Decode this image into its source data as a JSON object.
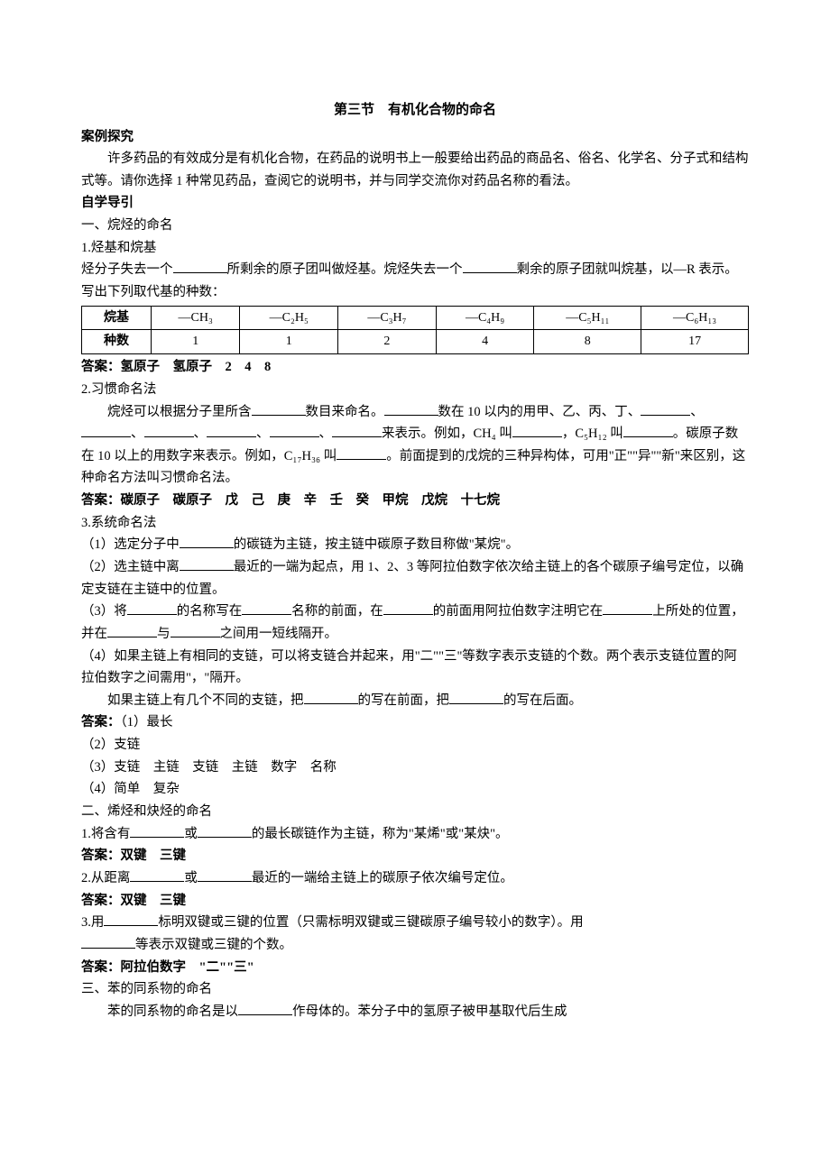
{
  "title": "第三节　有机化合物的命名",
  "sections": {
    "case_study": {
      "heading": "案例探究",
      "text": "许多药品的有效成分是有机化合物，在药品的说明书上一般要给出药品的商品名、俗名、化学名、分子式和结构式等。请你选择 1 种常见药品，查阅它的说明书，并与同学交流你对药品名称的看法。"
    },
    "self_study": {
      "heading": "自学导引"
    },
    "part1": {
      "heading": "一、烷烃的命名",
      "item1": {
        "label": "1.烃基和烷基",
        "text_a": "烃分子失去一个",
        "text_b": "所剩余的原子团叫做烃基。烷烃失去一个",
        "text_c": "剩余的原子团就叫烷基，以—R 表示。写出下列取代基的种数："
      },
      "table": {
        "row1_header": "烷基",
        "row2_header": "种数",
        "cells_row1": [
          "—CH₃",
          "—C₂H₅",
          "—C₃H₇",
          "—C₄H₉",
          "—C₅H₁₁",
          "—C₆H₁₃"
        ],
        "cells_row2": [
          "1",
          "1",
          "2",
          "4",
          "8",
          "17"
        ]
      },
      "answer1": "答案：氢原子　氢原子　2　4　8",
      "item2": {
        "label": "2.习惯命名法",
        "text_a": "烷烃可以根据分子里所含",
        "text_b": "数目来命名。",
        "text_c": "数在 10 以内的用甲、乙、丙、丁、",
        "text_d": "、",
        "text_e": "、",
        "text_f": "、",
        "text_g": "、",
        "text_h": "、",
        "text_i": "来表示。例如，CH₄ 叫",
        "text_j": "，C₅H₁₂ 叫",
        "text_k": "。碳原子数在 10 以上的用数字来表示。例如，C₁₇H₃₆ 叫",
        "text_l": "。前面提到的戊烷的三种异构体，可用\"正\"\"异\"\"新\"来区别，这种命名方法叫习惯命名法。"
      },
      "answer2": "答案：碳原子　碳原子　戊　己　庚　辛　壬　癸　甲烷　戊烷　十七烷",
      "item3": {
        "label": "3.系统命名法",
        "sub1_a": "（1）选定分子中",
        "sub1_b": "的碳链为主链，按主链中碳原子数目称做\"某烷\"。",
        "sub2_a": "（2）选主链中离",
        "sub2_b": "最近的一端为起点，用 1、2、3 等阿拉伯数字依次给主链上的各个碳原子编号定位，以确定支链在主链中的位置。",
        "sub3_a": "（3）将",
        "sub3_b": "的名称写在",
        "sub3_c": "名称的前面，在",
        "sub3_d": "的前面用阿拉伯数字注明它在",
        "sub3_e": "上所处的位置，并在",
        "sub3_f": "与",
        "sub3_g": "之间用一短线隔开。",
        "sub4": "（4）如果主链上有相同的支链，可以将支链合并起来，用\"二\"\"三\"等数字表示支链的个数。两个表示支链位置的阿拉伯数字之间需用\"，\"隔开。",
        "sub4b_a": "如果主链上有几个不同的支链，把",
        "sub4b_b": "的写在前面，把",
        "sub4b_c": "的写在后面。"
      },
      "answer3": {
        "label": "答案：",
        "a1": "（1）最长",
        "a2": "（2）支链",
        "a3": "（3）支链　主链　支链　主链　数字　名称",
        "a4": "（4）简单　复杂"
      }
    },
    "part2": {
      "heading": "二、烯烃和炔烃的命名",
      "item1_a": "1.将含有",
      "item1_b": "或",
      "item1_c": "的最长碳链作为主链，称为\"某烯\"或\"某炔\"。",
      "answer1": "答案：双键　三键",
      "item2_a": "2.从距离",
      "item2_b": "或",
      "item2_c": "最近的一端给主链上的碳原子依次编号定位。",
      "answer2": "答案：双键　三键",
      "item3_a": "3.用",
      "item3_b": "标明双键或三键的位置（只需标明双键或三键碳原子编号较小的数字）。用",
      "item3_c": "等表示双键或三键的个数。",
      "answer3": "答案：阿拉伯数字　\"二\"\"三\""
    },
    "part3": {
      "heading": "三、苯的同系物的命名",
      "text_a": "苯的同系物的命名是以",
      "text_b": "作母体的。苯分子中的氢原子被甲基取代后生成"
    }
  },
  "style": {
    "background_color": "#ffffff",
    "text_color": "#000000",
    "font_size_body": 14.5,
    "font_size_title": 15,
    "table_border_color": "#000000"
  }
}
